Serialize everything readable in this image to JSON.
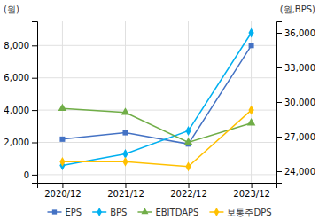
{
  "chart_data": {
    "type": "line",
    "categories": [
      "2020/12",
      "2021/12",
      "2022/12",
      "2023/12"
    ],
    "series": [
      {
        "name": "EPS",
        "color": "#4472c4",
        "marker": "square",
        "values": [
          2200,
          2600,
          1900,
          8000
        ]
      },
      {
        "name": "BPS",
        "color": "#00b0f0",
        "marker": "diamond",
        "axis": "y2",
        "values": [
          24500,
          25500,
          27500,
          36000
        ]
      },
      {
        "name": "EBITDAPS",
        "color": "#70ad47",
        "marker": "triangle",
        "values": [
          4100,
          3850,
          2000,
          3200
        ]
      },
      {
        "name": "보통주DPS",
        "color": "#ffc000",
        "marker": "diamond",
        "values": [
          800,
          800,
          500,
          4000
        ]
      }
    ],
    "ylabel": "(원)",
    "y2label": "(원,BPS)",
    "ylim": [
      -500,
      9500
    ],
    "yticks": [
      0,
      {
        "value": 2000,
        "label": "2,000"
      },
      {
        "value": 4000,
        "label": "4,000"
      },
      {
        "value": 6000,
        "label": "6,000"
      },
      {
        "value": 8000,
        "label": "8,000"
      }
    ],
    "y2lim": [
      23000,
      37000
    ],
    "y2ticks": [
      {
        "value": 24000,
        "label": "24,000"
      },
      {
        "value": 27000,
        "label": "27,000"
      },
      {
        "value": 30000,
        "label": "30,000"
      },
      {
        "value": 33000,
        "label": "33,000"
      },
      {
        "value": 36000,
        "label": "36,000"
      }
    ],
    "grid": true,
    "legend": "bottom"
  }
}
